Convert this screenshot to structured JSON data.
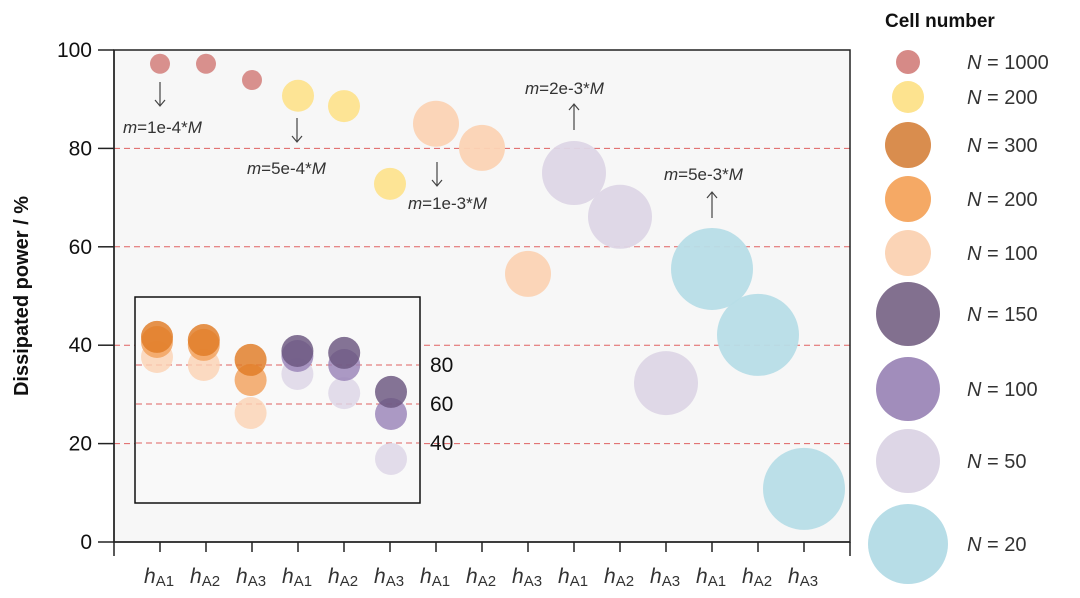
{
  "chart_data": {
    "type": "scatter",
    "title": "",
    "ylabel": "Dissipated power / %",
    "xlabel": "",
    "ylim": [
      0,
      100
    ],
    "yticks": [
      0,
      20,
      40,
      60,
      80,
      100
    ],
    "grid": "dashed red horizontal lines at 20, 40, 60, 80",
    "categories": [
      {
        "base": "h",
        "sub": "A1"
      },
      {
        "base": "h",
        "sub": "A2"
      },
      {
        "base": "h",
        "sub": "A3"
      },
      {
        "base": "h",
        "sub": "A1"
      },
      {
        "base": "h",
        "sub": "A2"
      },
      {
        "base": "h",
        "sub": "A3"
      },
      {
        "base": "h",
        "sub": "A1"
      },
      {
        "base": "h",
        "sub": "A2"
      },
      {
        "base": "h",
        "sub": "A3"
      },
      {
        "base": "h",
        "sub": "A1"
      },
      {
        "base": "h",
        "sub": "A2"
      },
      {
        "base": "h",
        "sub": "A3"
      },
      {
        "base": "h",
        "sub": "A1"
      },
      {
        "base": "h",
        "sub": "A2"
      },
      {
        "base": "h",
        "sub": "A3"
      }
    ],
    "series": [
      {
        "name": "N = 1000",
        "color": "#d68a87",
        "size": 1,
        "x": [
          0,
          1,
          2
        ],
        "values": [
          97.2,
          97.2,
          93.9
        ]
      },
      {
        "name": "N = 200",
        "color": "#fde38f",
        "size": 2,
        "x": [
          3,
          4,
          5
        ],
        "values": [
          90.7,
          88.6,
          72.8
        ]
      },
      {
        "name": "N = 100",
        "color": "#fbd3b4",
        "size": 3,
        "x": [
          6,
          7,
          8
        ],
        "values": [
          85.0,
          80.1,
          54.5
        ]
      },
      {
        "name": "N = 50",
        "color": "#ddd6e6",
        "size": 4,
        "x": [
          9,
          10,
          11
        ],
        "values": [
          75.0,
          66.1,
          32.3
        ]
      },
      {
        "name": "N = 20",
        "color": "#b7dde7",
        "size": 5,
        "x": [
          12,
          13,
          14
        ],
        "values": [
          55.5,
          42.1,
          10.8
        ]
      }
    ],
    "annotations": [
      {
        "italic": "m",
        "text": "=1e-4*",
        "italic2": "M",
        "arrow": "down",
        "x": 0
      },
      {
        "italic": "m",
        "text": "=5e-4*",
        "italic2": "M",
        "arrow": "down",
        "x": 3
      },
      {
        "italic": "m",
        "text": "=1e-3*",
        "italic2": "M",
        "arrow": "down",
        "x": 6
      },
      {
        "italic": "m",
        "text": "=2e-3*",
        "italic2": "M",
        "arrow": "up",
        "x": 9
      },
      {
        "italic": "m",
        "text": "=5e-3*",
        "italic2": "M",
        "arrow": "up",
        "x": 12
      }
    ],
    "inset": {
      "yticks": [
        40,
        60,
        80
      ],
      "columns": 6,
      "series": [
        {
          "name": "N = 100",
          "color": "#fbd3b4",
          "x": [
            0,
            1,
            2
          ],
          "values": [
            84.1,
            80.0,
            55.4
          ]
        },
        {
          "name": "N = 200",
          "color": "#f2a15d",
          "x": [
            0,
            1,
            2
          ],
          "values": [
            91.8,
            90.3,
            72.3
          ]
        },
        {
          "name": "N = 300",
          "color": "#e07b25",
          "x": [
            0,
            1,
            2
          ],
          "values": [
            94.4,
            92.8,
            82.6
          ]
        },
        {
          "name": "N = 50",
          "color": "#ddd6e6",
          "x": [
            3,
            4,
            5
          ],
          "values": [
            75.4,
            65.6,
            31.8
          ]
        },
        {
          "name": "N = 100",
          "color": "#9a84b8",
          "x": [
            3,
            4,
            5
          ],
          "values": [
            84.6,
            80.0,
            54.9
          ]
        },
        {
          "name": "N = 150",
          "color": "#6a557f",
          "x": [
            3,
            4,
            5
          ],
          "values": [
            87.2,
            86.2,
            66.2
          ]
        }
      ]
    },
    "legend": {
      "title": "Cell number",
      "position": "right",
      "entries": [
        {
          "label": "= 1000",
          "var": "N",
          "color": "#d68a87",
          "size": 1
        },
        {
          "label": "= 200",
          "var": "N",
          "color": "#fde38f",
          "size": 2
        },
        {
          "label": "= 300",
          "var": "N",
          "color": "#d98d4e",
          "size": 3
        },
        {
          "label": "= 200",
          "var": "N",
          "color": "#f5a965",
          "size": 3
        },
        {
          "label": "= 100",
          "var": "N",
          "color": "#fbd4b6",
          "size": 3
        },
        {
          "label": "= 150",
          "var": "N",
          "color": "#82708f",
          "size": 4
        },
        {
          "label": "= 100",
          "var": "N",
          "color": "#a18dbb",
          "size": 4
        },
        {
          "label": "= 50",
          "var": "N",
          "color": "#ddd6e6",
          "size": 4
        },
        {
          "label": "= 20",
          "var": "N",
          "color": "#b7dde7",
          "size": 5
        }
      ]
    },
    "colors": {
      "grid": "#e06262",
      "plot_bg": "#f7f7f7"
    }
  }
}
